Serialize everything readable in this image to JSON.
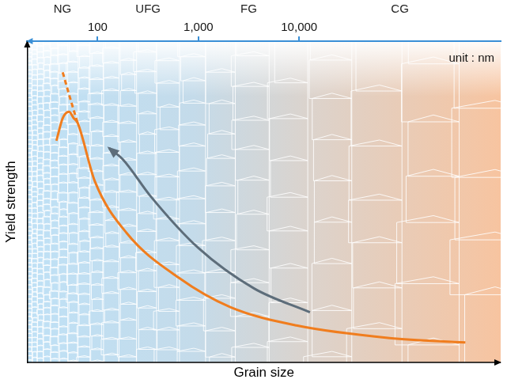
{
  "chart_data": {
    "type": "line",
    "x_label": "Grain size",
    "y_label": "Yield strength",
    "unit_label": "unit : nm",
    "log": "x",
    "grid": false,
    "tick_labels": "x",
    "xlim": [
      20,
      1000000
    ],
    "xticks": [
      {
        "value": 100,
        "label": "100"
      },
      {
        "value": 1000,
        "label": "1,000"
      },
      {
        "value": 10000,
        "label": "10,000"
      }
    ],
    "ylim": [
      0,
      100
    ],
    "regions": [
      {
        "label": "NG",
        "from": 20,
        "to": 100
      },
      {
        "label": "UFG",
        "from": 100,
        "to": 1000
      },
      {
        "label": "FG",
        "from": 1000,
        "to": 10000
      },
      {
        "label": "CG",
        "from": 10000,
        "to": 1000000
      }
    ],
    "series": [
      {
        "color": "#f07d1e",
        "line_style": "solid",
        "marker": "none",
        "x": [
          39,
          45,
          52,
          58,
          63,
          94,
          195,
          635,
          2075,
          9400,
          79000,
          446000
        ],
        "values": [
          69,
          76,
          78,
          76,
          74.7,
          56.3,
          40.2,
          26.4,
          17.2,
          11.5,
          7.6,
          6.2
        ]
      },
      {
        "color": "#f07d1e",
        "line_style": "dashed",
        "marker": "none",
        "x": [
          45,
          56,
          63
        ],
        "values": [
          90.3,
          80,
          74.7
        ]
      },
      {
        "color": "#5d6d7a",
        "line_style": "solid",
        "marker": "arrow",
        "x": [
          12800,
          3580,
          1000,
          336,
          178,
          130
        ],
        "values": [
          15.6,
          23.0,
          35.6,
          51.7,
          63.2,
          66.7
        ]
      }
    ]
  }
}
